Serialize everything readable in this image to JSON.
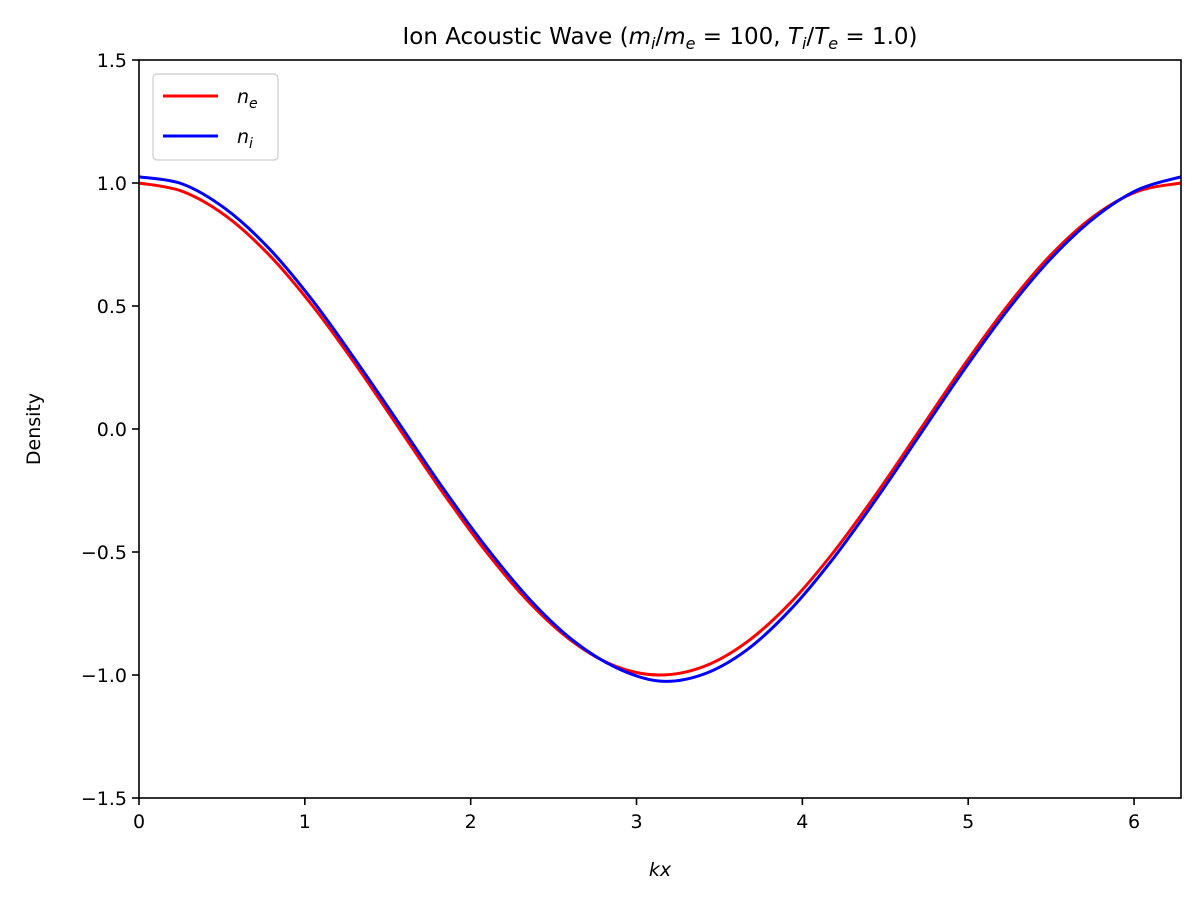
{
  "chart_data": {
    "type": "line",
    "title_parts": {
      "prefix": "Ion Acoustic Wave (",
      "m": "m",
      "i": "i",
      "slash": "/",
      "e": "e",
      "eq_mass": " = 100, ",
      "T": "T",
      "eq_temp": " = 1.0)"
    },
    "xlabel": "kx",
    "ylabel": "Density",
    "xlim": [
      0,
      6.283185
    ],
    "ylim": [
      -1.5,
      1.5
    ],
    "x_ticks": [
      0,
      1,
      2,
      3,
      4,
      5,
      6
    ],
    "x_tick_labels": [
      "0",
      "1",
      "2",
      "3",
      "4",
      "5",
      "6"
    ],
    "y_ticks": [
      -1.5,
      -1.0,
      -0.5,
      0.0,
      0.5,
      1.0,
      1.5
    ],
    "y_tick_labels": [
      "−1.5",
      "−1.0",
      "−0.5",
      "0.0",
      "0.5",
      "1.0",
      "1.5"
    ],
    "grid": false,
    "legend": {
      "position": "top-left",
      "entries": [
        {
          "base": "n",
          "sub": "e",
          "color": "#ff0000"
        },
        {
          "base": "n",
          "sub": "i",
          "color": "#0000ff"
        }
      ]
    },
    "series": [
      {
        "color": "#ff0000",
        "x": [
          0,
          0.2618,
          0.5236,
          0.7854,
          1.0472,
          1.309,
          1.5708,
          1.8326,
          2.0944,
          2.3562,
          2.618,
          2.8798,
          3.1416,
          3.4034,
          3.6652,
          3.927,
          4.1888,
          4.4506,
          4.7124,
          4.9742,
          5.236,
          5.4978,
          5.7596,
          6.0214,
          6.2832
        ],
        "y": [
          1.0,
          0.966,
          0.866,
          0.707,
          0.5,
          0.259,
          0.0,
          -0.259,
          -0.5,
          -0.707,
          -0.866,
          -0.966,
          -1.0,
          -0.966,
          -0.866,
          -0.707,
          -0.5,
          -0.259,
          0.0,
          0.259,
          0.5,
          0.707,
          0.866,
          0.966,
          1.0
        ]
      },
      {
        "color": "#0000ff",
        "x": [
          0,
          0.2618,
          0.5236,
          0.7854,
          1.0472,
          1.309,
          1.5708,
          1.8326,
          2.0944,
          2.3562,
          2.618,
          2.8798,
          3.1416,
          3.4034,
          3.6652,
          3.927,
          4.1888,
          4.4506,
          4.7124,
          4.9742,
          5.236,
          5.4978,
          5.7596,
          6.0214,
          6.2832
        ],
        "y": [
          1.025,
          0.996,
          0.894,
          0.733,
          0.522,
          0.277,
          0.02,
          -0.24,
          -0.481,
          -0.693,
          -0.86,
          -0.971,
          -1.025,
          -0.997,
          -0.898,
          -0.735,
          -0.524,
          -0.28,
          -0.02,
          0.24,
          0.482,
          0.692,
          0.858,
          0.972,
          1.025
        ]
      }
    ]
  }
}
